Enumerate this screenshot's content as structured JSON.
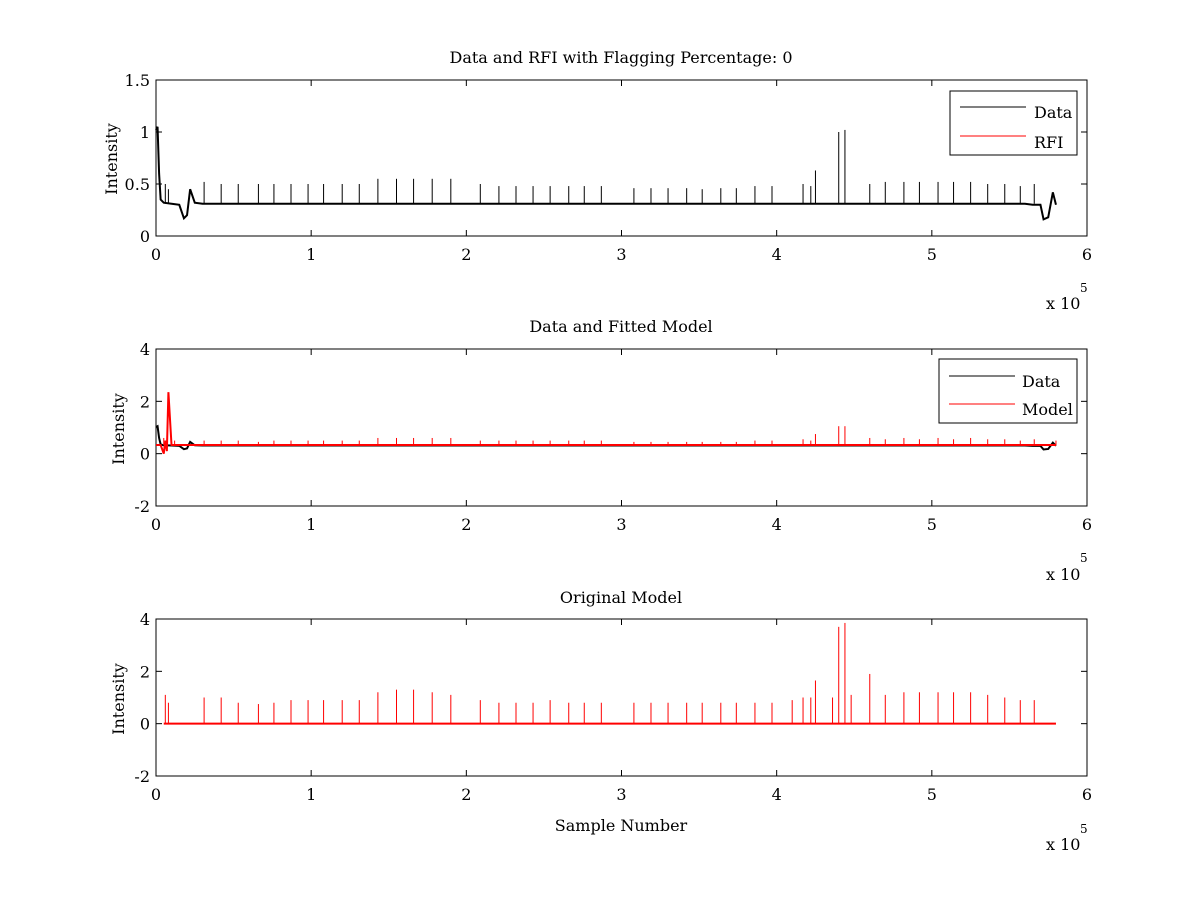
{
  "colors": {
    "data": "#000000",
    "rfi": "#ff0000",
    "model": "#ff0000",
    "axes": "#000000",
    "background": "#ffffff"
  },
  "chart_data": [
    {
      "type": "line",
      "title": "Data and RFI with Flagging Percentage: 0",
      "xlabel": "",
      "ylabel": "Intensity",
      "xlim": [
        0,
        6
      ],
      "ylim": [
        0,
        1.5
      ],
      "x_multiplier_label": "x 10",
      "x_multiplier_exponent": "5",
      "x_ticks": [
        "0",
        "1",
        "2",
        "3",
        "4",
        "5",
        "6"
      ],
      "y_ticks": [
        "0",
        "0.5",
        "1",
        "1.5"
      ],
      "legend": {
        "placement": "top-right",
        "entries": [
          "Data",
          "RFI"
        ]
      },
      "series": [
        {
          "name": "Data",
          "color": "#000000",
          "baseline": 0.31,
          "x": [
            0,
            0.01,
            0.02,
            0.03,
            0.05,
            0.1,
            0.15,
            0.18,
            0.2,
            0.22,
            0.25,
            0.3,
            5.6,
            5.65,
            5.7,
            5.72,
            5.75,
            5.78,
            5.8
          ],
          "y": [
            1.02,
            1.05,
            0.6,
            0.35,
            0.32,
            0.31,
            0.3,
            0.17,
            0.2,
            0.45,
            0.32,
            0.31,
            0.31,
            0.3,
            0.3,
            0.16,
            0.18,
            0.42,
            0.3
          ],
          "spikes": {
            "x": [
              0.06,
              0.08,
              0.31,
              0.42,
              0.53,
              0.66,
              0.76,
              0.87,
              0.98,
              1.08,
              1.2,
              1.31,
              1.43,
              1.55,
              1.66,
              1.78,
              1.9,
              2.09,
              2.21,
              2.32,
              2.43,
              2.54,
              2.66,
              2.76,
              2.87,
              3.08,
              3.19,
              3.3,
              3.42,
              3.52,
              3.64,
              3.74,
              3.86,
              3.97,
              4.17,
              4.22,
              4.25,
              4.4,
              4.44,
              4.6,
              4.7,
              4.82,
              4.92,
              5.04,
              5.14,
              5.25,
              5.36,
              5.47,
              5.57,
              5.66
            ],
            "y": [
              0.5,
              0.45,
              0.52,
              0.5,
              0.5,
              0.5,
              0.5,
              0.5,
              0.5,
              0.5,
              0.5,
              0.5,
              0.55,
              0.55,
              0.55,
              0.55,
              0.55,
              0.5,
              0.48,
              0.48,
              0.48,
              0.48,
              0.48,
              0.48,
              0.48,
              0.46,
              0.46,
              0.46,
              0.46,
              0.45,
              0.46,
              0.46,
              0.48,
              0.48,
              0.5,
              0.48,
              0.63,
              1.0,
              1.02,
              0.5,
              0.52,
              0.52,
              0.52,
              0.52,
              0.52,
              0.52,
              0.5,
              0.5,
              0.48,
              0.5
            ]
          }
        },
        {
          "name": "RFI",
          "color": "#ff0000",
          "x": [],
          "y": []
        }
      ]
    },
    {
      "type": "line",
      "title": "Data and Fitted Model",
      "xlabel": "",
      "ylabel": "Intensity",
      "xlim": [
        0,
        6
      ],
      "ylim": [
        -2,
        4
      ],
      "x_multiplier_label": "x 10",
      "x_multiplier_exponent": "5",
      "x_ticks": [
        "0",
        "1",
        "2",
        "3",
        "4",
        "5",
        "6"
      ],
      "y_ticks": [
        "-2",
        "0",
        "2",
        "4"
      ],
      "legend": {
        "placement": "top-right",
        "entries": [
          "Data",
          "Model"
        ]
      },
      "series": [
        {
          "name": "Data",
          "color": "#000000",
          "baseline": 0.31,
          "x": [
            0,
            0.01,
            0.02,
            0.03,
            0.05,
            0.1,
            0.15,
            0.18,
            0.2,
            0.22,
            0.25,
            0.3,
            5.6,
            5.65,
            5.7,
            5.72,
            5.75,
            5.78,
            5.8
          ],
          "y": [
            1.02,
            1.05,
            0.6,
            0.35,
            0.32,
            0.31,
            0.3,
            0.17,
            0.2,
            0.45,
            0.32,
            0.31,
            0.31,
            0.3,
            0.3,
            0.16,
            0.18,
            0.42,
            0.3
          ],
          "spikes": {
            "x": [],
            "y": []
          }
        },
        {
          "name": "Model",
          "color": "#ff0000",
          "baseline": 0.33,
          "x": [
            0,
            0.03,
            0.05,
            0.06,
            0.07,
            0.08,
            0.1,
            5.8
          ],
          "y": [
            0.33,
            0.33,
            0.0,
            0.5,
            0.1,
            2.35,
            0.33,
            0.33
          ],
          "spikes": {
            "x": [
              0.05,
              0.12,
              0.31,
              0.42,
              0.53,
              0.66,
              0.76,
              0.87,
              0.98,
              1.08,
              1.2,
              1.31,
              1.43,
              1.55,
              1.66,
              1.78,
              1.9,
              2.09,
              2.21,
              2.32,
              2.43,
              2.54,
              2.66,
              2.76,
              2.87,
              3.08,
              3.19,
              3.3,
              3.42,
              3.52,
              3.64,
              3.74,
              3.86,
              3.97,
              4.17,
              4.22,
              4.25,
              4.4,
              4.44,
              4.6,
              4.7,
              4.82,
              4.92,
              5.04,
              5.14,
              5.25,
              5.36,
              5.47,
              5.57,
              5.66,
              5.8
            ],
            "y": [
              0.6,
              0.5,
              0.5,
              0.5,
              0.5,
              0.45,
              0.5,
              0.5,
              0.5,
              0.5,
              0.5,
              0.5,
              0.6,
              0.6,
              0.6,
              0.6,
              0.6,
              0.5,
              0.5,
              0.5,
              0.5,
              0.5,
              0.5,
              0.5,
              0.5,
              0.45,
              0.45,
              0.45,
              0.45,
              0.45,
              0.45,
              0.45,
              0.5,
              0.5,
              0.55,
              0.5,
              0.75,
              1.05,
              1.05,
              0.6,
              0.55,
              0.6,
              0.55,
              0.6,
              0.55,
              0.6,
              0.55,
              0.55,
              0.5,
              0.55,
              0.5
            ]
          }
        }
      ]
    },
    {
      "type": "line",
      "title": "Original Model",
      "xlabel": "Sample Number",
      "ylabel": "Intensity",
      "xlim": [
        0,
        6
      ],
      "ylim": [
        -2,
        4
      ],
      "x_multiplier_label": "x 10",
      "x_multiplier_exponent": "5",
      "x_ticks": [
        "0",
        "1",
        "2",
        "3",
        "4",
        "5",
        "6"
      ],
      "y_ticks": [
        "-2",
        "0",
        "2",
        "4"
      ],
      "legend": null,
      "series": [
        {
          "name": "",
          "color": "#ff0000",
          "baseline": 0.0,
          "x": [
            0.05,
            5.8
          ],
          "y": [
            0.0,
            0.0
          ],
          "spikes": {
            "x": [
              0.06,
              0.08,
              0.31,
              0.42,
              0.53,
              0.66,
              0.76,
              0.87,
              0.98,
              1.08,
              1.2,
              1.31,
              1.43,
              1.55,
              1.66,
              1.78,
              1.9,
              2.09,
              2.21,
              2.32,
              2.43,
              2.54,
              2.66,
              2.76,
              2.87,
              3.08,
              3.19,
              3.3,
              3.42,
              3.52,
              3.64,
              3.74,
              3.86,
              3.97,
              4.1,
              4.17,
              4.22,
              4.25,
              4.36,
              4.4,
              4.44,
              4.48,
              4.6,
              4.7,
              4.82,
              4.92,
              5.04,
              5.14,
              5.25,
              5.36,
              5.47,
              5.57,
              5.66
            ],
            "y": [
              1.1,
              0.8,
              1.0,
              1.0,
              0.8,
              0.75,
              0.8,
              0.9,
              0.9,
              0.9,
              0.9,
              0.9,
              1.2,
              1.3,
              1.3,
              1.2,
              1.1,
              0.9,
              0.8,
              0.8,
              0.8,
              0.9,
              0.8,
              0.8,
              0.8,
              0.8,
              0.8,
              0.8,
              0.8,
              0.8,
              0.8,
              0.8,
              0.8,
              0.8,
              0.9,
              1.0,
              1.0,
              1.65,
              1.0,
              3.7,
              3.85,
              1.1,
              1.9,
              1.1,
              1.2,
              1.2,
              1.2,
              1.2,
              1.2,
              1.1,
              1.0,
              0.9,
              0.9
            ]
          }
        }
      ]
    }
  ]
}
